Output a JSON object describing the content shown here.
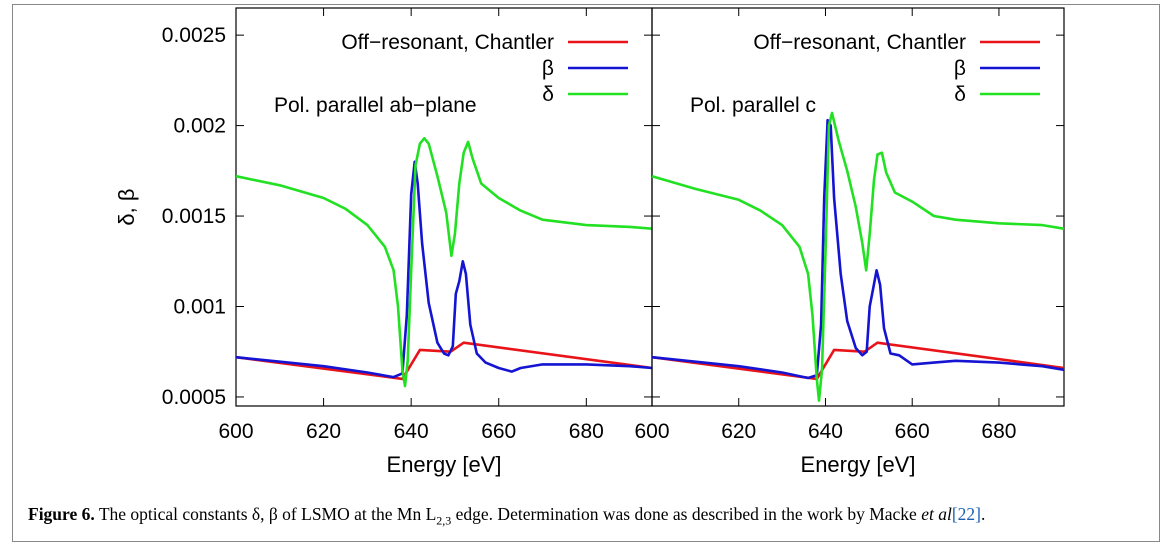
{
  "caption": {
    "label": "Figure 6.",
    "text": " The optical constants δ, β of LSMO at the Mn L",
    "subscript": "2,3",
    "text2": " edge. Determination was done as described in the work by Macke ",
    "etal": "et al",
    "ref": "[22]",
    "end": "."
  },
  "chart_data": [
    {
      "type": "line",
      "panel_label": "Pol. parallel ab−plane",
      "xlabel": "Energy [eV]",
      "ylabel": "δ, β",
      "xlim": [
        600,
        695
      ],
      "ylim": [
        0.00045,
        0.00265
      ],
      "xticks": [
        "600",
        "620",
        "640",
        "660",
        "680"
      ],
      "yticks": [
        "0.0005",
        "0.001",
        "0.0015",
        "0.002",
        "0.0025"
      ],
      "ytick_values": [
        0.0005,
        0.001,
        0.0015,
        0.002,
        0.0025
      ],
      "xtick_values": [
        600,
        620,
        640,
        660,
        680
      ],
      "legend_position": "top-right",
      "series": [
        {
          "name": "Off−resonant, Chantler",
          "color": "#e8141a",
          "x": [
            600,
            638,
            642,
            649,
            652,
            695
          ],
          "y": [
            0.00072,
            0.0006,
            0.00076,
            0.00075,
            0.0008,
            0.00066
          ]
        },
        {
          "name": "β",
          "color": "#1414d2",
          "x": [
            600,
            610,
            620,
            630,
            636,
            638,
            639,
            640,
            640.8,
            641.5,
            642.5,
            644,
            646,
            647.5,
            648.5,
            649.5,
            650.2,
            651,
            651.8,
            652.5,
            653.5,
            655,
            657,
            660,
            663,
            665,
            670,
            680,
            690,
            695
          ],
          "y": [
            0.00072,
            0.000695,
            0.00067,
            0.000635,
            0.00061,
            0.00063,
            0.00095,
            0.00162,
            0.0018,
            0.00168,
            0.00135,
            0.00102,
            0.0008,
            0.00074,
            0.00073,
            0.00078,
            0.00107,
            0.00114,
            0.00125,
            0.00118,
            0.0009,
            0.00074,
            0.00069,
            0.00066,
            0.00064,
            0.00066,
            0.00068,
            0.00068,
            0.00067,
            0.00066
          ]
        },
        {
          "name": "δ",
          "color": "#22e022",
          "x": [
            600,
            610,
            620,
            625,
            630,
            634,
            636,
            637,
            638,
            638.6,
            639.2,
            640,
            641,
            642,
            643,
            644,
            646,
            648,
            649.2,
            650,
            651,
            652,
            653,
            654,
            656,
            660,
            665,
            670,
            680,
            690,
            695
          ],
          "y": [
            0.00172,
            0.00167,
            0.0016,
            0.00154,
            0.00145,
            0.00133,
            0.0012,
            0.001,
            0.00065,
            0.00056,
            0.0007,
            0.0012,
            0.00178,
            0.0019,
            0.00193,
            0.0019,
            0.00172,
            0.00152,
            0.00128,
            0.0014,
            0.00168,
            0.00185,
            0.00191,
            0.00182,
            0.00168,
            0.0016,
            0.00153,
            0.00148,
            0.00145,
            0.00144,
            0.00143
          ]
        }
      ]
    },
    {
      "type": "line",
      "panel_label": "Pol. parallel c",
      "xlabel": "Energy [eV]",
      "xlim": [
        600,
        695
      ],
      "ylim": [
        0.00045,
        0.00265
      ],
      "xticks": [
        "600",
        "620",
        "640",
        "660",
        "680"
      ],
      "xtick_values": [
        600,
        620,
        640,
        660,
        680
      ],
      "legend_position": "top-right",
      "series": [
        {
          "name": "Off−resonant, Chantler",
          "color": "#e8141a",
          "x": [
            600,
            638,
            642,
            649,
            652,
            695
          ],
          "y": [
            0.00072,
            0.0006,
            0.00076,
            0.00075,
            0.0008,
            0.00066
          ]
        },
        {
          "name": "β",
          "color": "#1414d2",
          "x": [
            600,
            610,
            620,
            630,
            636,
            638,
            639,
            639.7,
            640.5,
            641.2,
            642,
            643.5,
            645,
            647,
            648.5,
            649.5,
            650.2,
            651,
            651.8,
            652.6,
            653.5,
            655,
            657,
            660,
            665,
            670,
            680,
            690,
            695
          ],
          "y": [
            0.00072,
            0.000695,
            0.00067,
            0.000635,
            0.000605,
            0.00062,
            0.0009,
            0.0016,
            0.00203,
            0.002,
            0.0016,
            0.00118,
            0.00092,
            0.00077,
            0.00073,
            0.00075,
            0.001,
            0.0011,
            0.0012,
            0.00112,
            0.00088,
            0.00074,
            0.00073,
            0.00068,
            0.00069,
            0.0007,
            0.00069,
            0.00067,
            0.00065
          ]
        },
        {
          "name": "δ",
          "color": "#22e022",
          "x": [
            600,
            610,
            620,
            625,
            630,
            634,
            636,
            637,
            638,
            638.5,
            639.2,
            640,
            640.8,
            641.5,
            643,
            645,
            647,
            648.5,
            649.4,
            650.2,
            651.2,
            652,
            653,
            654,
            656,
            660,
            665,
            670,
            680,
            690,
            695
          ],
          "y": [
            0.00172,
            0.00165,
            0.00159,
            0.00153,
            0.00145,
            0.00133,
            0.00118,
            0.00095,
            0.0006,
            0.00048,
            0.00065,
            0.0013,
            0.002,
            0.00207,
            0.00192,
            0.00175,
            0.00155,
            0.00135,
            0.0012,
            0.0014,
            0.0017,
            0.00184,
            0.00185,
            0.00174,
            0.00163,
            0.00158,
            0.0015,
            0.00148,
            0.00146,
            0.00145,
            0.00143
          ]
        }
      ]
    }
  ]
}
